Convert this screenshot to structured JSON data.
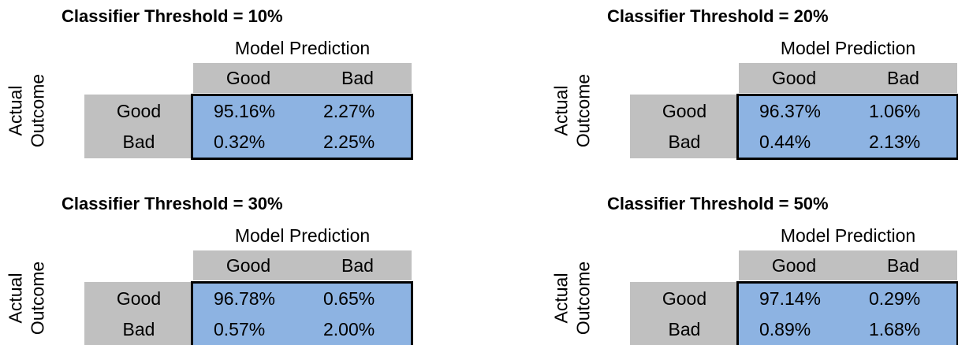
{
  "panels": [
    {
      "title": "Classifier Threshold = 10%",
      "column_header": "Model Prediction",
      "row_header_lines": [
        "Actual",
        "Outcome"
      ],
      "columns": [
        "Good",
        "Bad"
      ],
      "rows": [
        {
          "label": "Good",
          "cells": [
            "95.16%",
            "2.27%"
          ]
        },
        {
          "label": "Bad",
          "cells": [
            "0.32%",
            "2.25%"
          ]
        }
      ]
    },
    {
      "title": "Classifier Threshold = 20%",
      "column_header": "Model Prediction",
      "row_header_lines": [
        "Actual",
        "Outcome"
      ],
      "columns": [
        "Good",
        "Bad"
      ],
      "rows": [
        {
          "label": "Good",
          "cells": [
            "96.37%",
            "1.06%"
          ]
        },
        {
          "label": "Bad",
          "cells": [
            "0.44%",
            "2.13%"
          ]
        }
      ]
    },
    {
      "title": "Classifier Threshold = 30%",
      "column_header": "Model Prediction",
      "row_header_lines": [
        "Actual",
        "Outcome"
      ],
      "columns": [
        "Good",
        "Bad"
      ],
      "rows": [
        {
          "label": "Good",
          "cells": [
            "96.78%",
            "0.65%"
          ]
        },
        {
          "label": "Bad",
          "cells": [
            "0.57%",
            "2.00%"
          ]
        }
      ]
    },
    {
      "title": "Classifier Threshold = 50%",
      "column_header": "Model Prediction",
      "row_header_lines": [
        "Actual",
        "Outcome"
      ],
      "columns": [
        "Good",
        "Bad"
      ],
      "rows": [
        {
          "label": "Good",
          "cells": [
            "97.14%",
            "0.29%"
          ]
        },
        {
          "label": "Bad",
          "cells": [
            "0.89%",
            "1.68%"
          ]
        }
      ]
    }
  ]
}
